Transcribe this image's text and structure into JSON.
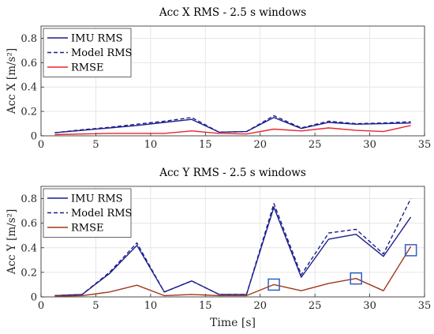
{
  "chart_data": [
    {
      "type": "line",
      "title": "Acc X RMS - 2.5 s windows",
      "ylabel": "Acc X [m/s²]",
      "xlabel": "",
      "xlim": [
        0,
        35
      ],
      "ylim": [
        0,
        0.9
      ],
      "xticks": [
        "0",
        "5",
        "10",
        "15",
        "20",
        "25",
        "30",
        "35"
      ],
      "yticks": [
        "0",
        "0.2",
        "0.4",
        "0.6",
        "0.8"
      ],
      "grid": true,
      "legend_position": "top-left",
      "x": [
        1.25,
        3.75,
        6.25,
        8.75,
        11.25,
        13.75,
        16.25,
        18.75,
        21.25,
        23.75,
        26.25,
        28.75,
        31.25,
        33.75
      ],
      "series": [
        {
          "name": "IMU RMS",
          "color": "#1c1f8c",
          "dash": "solid",
          "values": [
            0.025,
            0.045,
            0.065,
            0.085,
            0.11,
            0.135,
            0.03,
            0.035,
            0.15,
            0.06,
            0.11,
            0.095,
            0.1,
            0.105
          ]
        },
        {
          "name": "Model RMS",
          "color": "#1c1f8c",
          "dash": "dashed",
          "values": [
            0.025,
            0.05,
            0.07,
            0.095,
            0.12,
            0.15,
            0.03,
            0.035,
            0.165,
            0.065,
            0.12,
            0.1,
            0.105,
            0.115
          ]
        },
        {
          "name": "RMSE",
          "color": "#e8262c",
          "dash": "solid",
          "values": [
            0.01,
            0.015,
            0.02,
            0.02,
            0.02,
            0.04,
            0.02,
            0.015,
            0.055,
            0.04,
            0.065,
            0.045,
            0.035,
            0.085
          ]
        }
      ]
    },
    {
      "type": "line",
      "title": "Acc Y RMS - 2.5 s windows",
      "ylabel": "Acc Y [m/s²]",
      "xlabel": "Time [s]",
      "xlim": [
        0,
        35
      ],
      "ylim": [
        0,
        0.9
      ],
      "xticks": [
        "0",
        "5",
        "10",
        "15",
        "20",
        "25",
        "30",
        "35"
      ],
      "yticks": [
        "0",
        "0.2",
        "0.4",
        "0.6",
        "0.8"
      ],
      "grid": true,
      "legend_position": "top-left",
      "x": [
        1.25,
        3.75,
        6.25,
        8.75,
        11.25,
        13.75,
        16.25,
        18.75,
        21.25,
        23.75,
        26.25,
        28.75,
        31.25,
        33.75
      ],
      "series": [
        {
          "name": "IMU RMS",
          "color": "#1c1f8c",
          "dash": "solid",
          "values": [
            0.01,
            0.02,
            0.19,
            0.42,
            0.04,
            0.13,
            0.02,
            0.02,
            0.73,
            0.16,
            0.47,
            0.51,
            0.33,
            0.65
          ]
        },
        {
          "name": "Model RMS",
          "color": "#1c1f8c",
          "dash": "dashed",
          "values": [
            0.01,
            0.02,
            0.2,
            0.44,
            0.04,
            0.13,
            0.02,
            0.02,
            0.76,
            0.18,
            0.52,
            0.55,
            0.35,
            0.8
          ]
        },
        {
          "name": "RMSE",
          "color": "#a0391a",
          "dash": "solid",
          "values": [
            0.005,
            0.01,
            0.04,
            0.095,
            0.01,
            0.02,
            0.01,
            0.01,
            0.1,
            0.05,
            0.11,
            0.15,
            0.05,
            0.41
          ]
        }
      ],
      "annotations": [
        {
          "type": "box",
          "x": 21.25,
          "y": 0.1,
          "color": "#2f5fbf"
        },
        {
          "type": "box",
          "x": 28.75,
          "y": 0.15,
          "color": "#2f5fbf"
        },
        {
          "type": "box",
          "x": 33.75,
          "y": 0.38,
          "color": "#2f5fbf"
        }
      ]
    }
  ]
}
